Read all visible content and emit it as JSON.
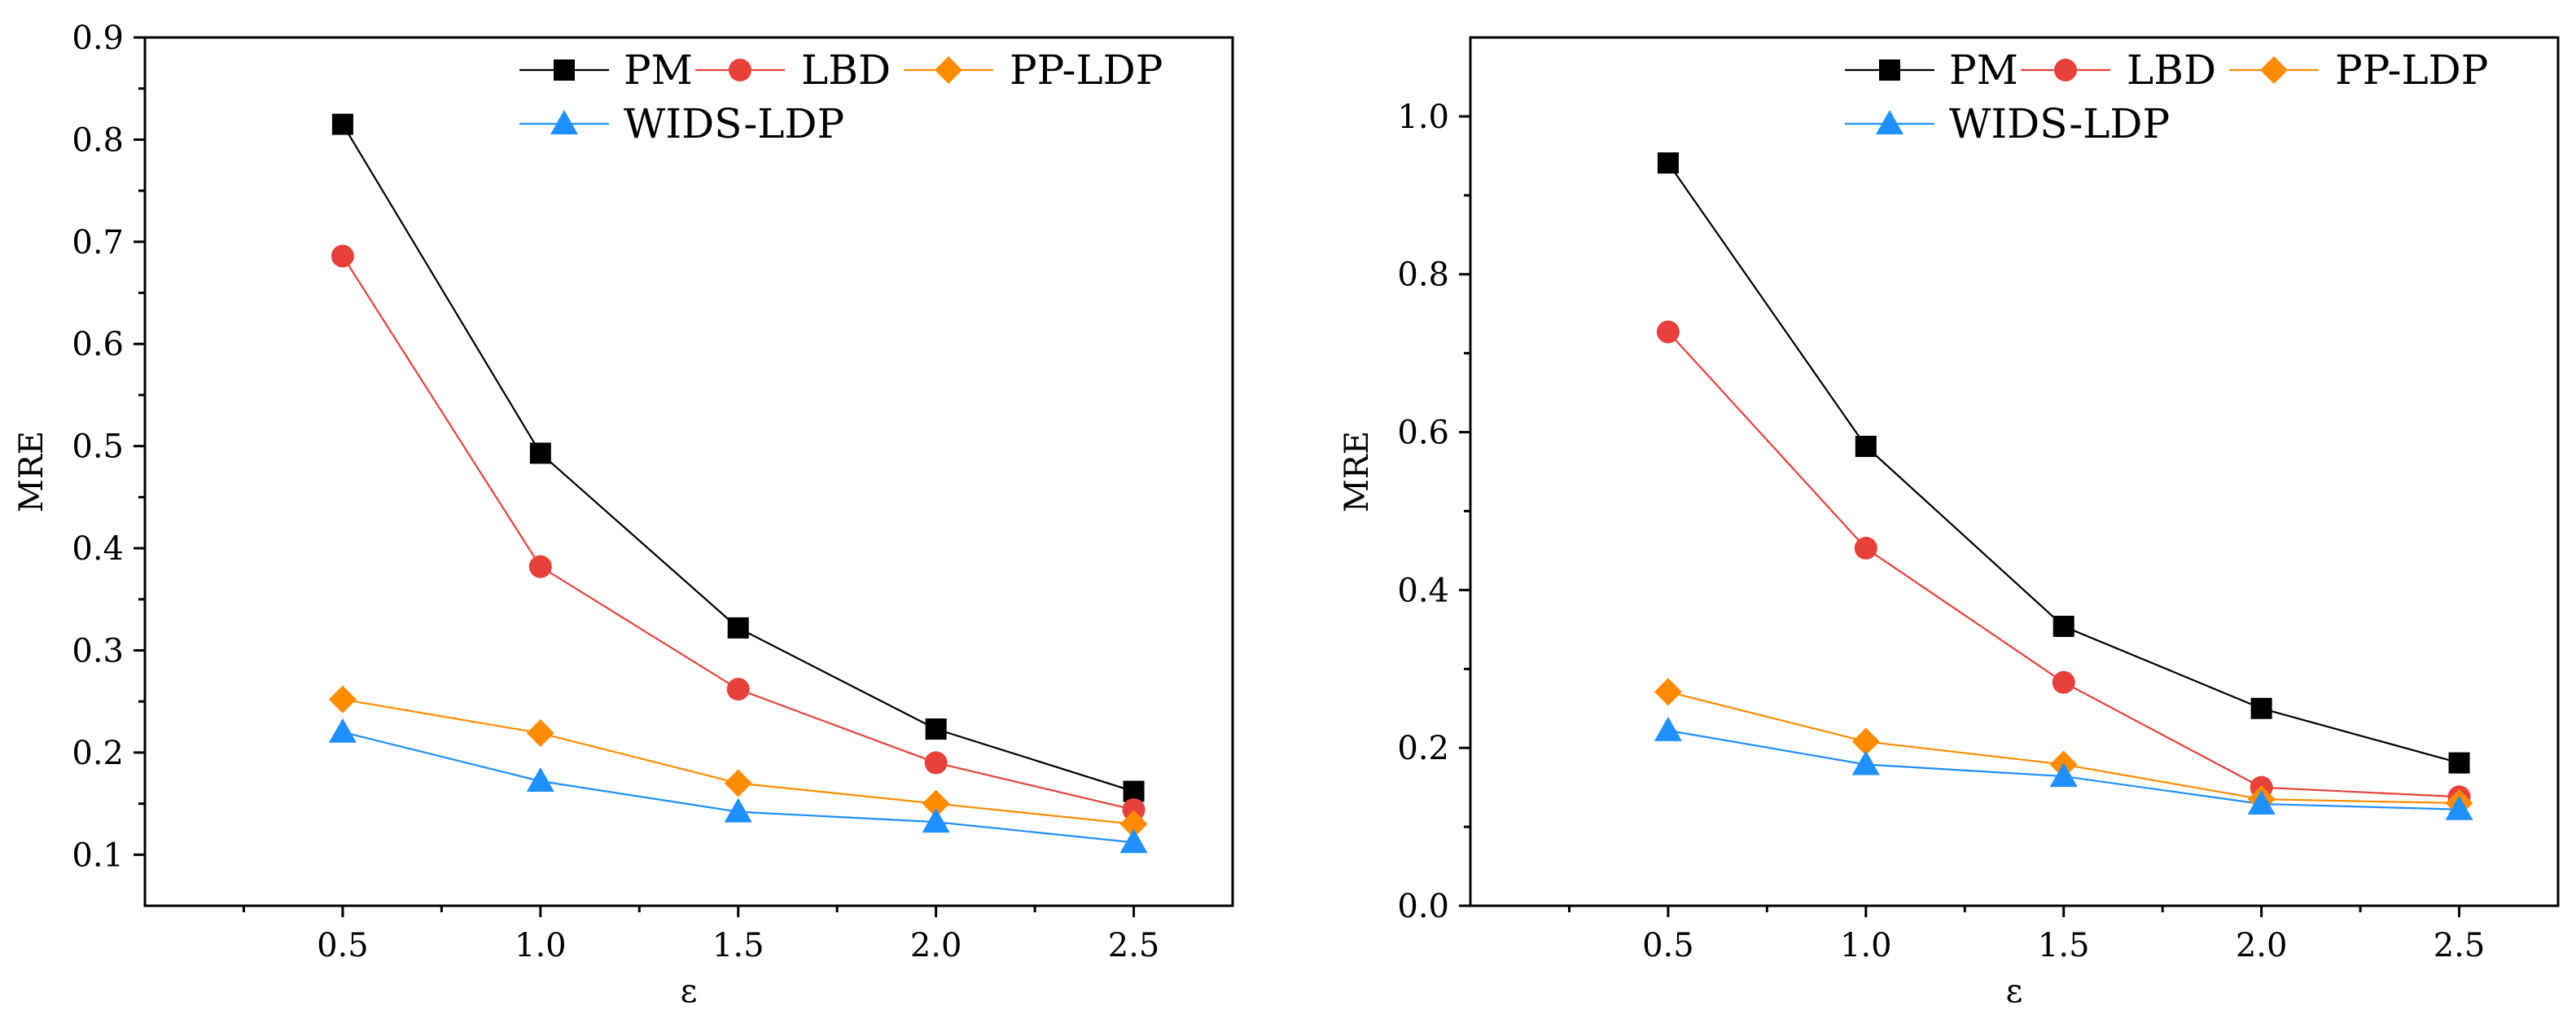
{
  "chart_data": [
    {
      "type": "line",
      "title": "",
      "xlabel": "ε",
      "ylabel": "MRE",
      "x": [
        0.5,
        1.0,
        1.5,
        2.0,
        2.5
      ],
      "x_tick_labels": [
        "0.5",
        "1.0",
        "1.5",
        "2.0",
        "2.5"
      ],
      "xlim": [
        0.0,
        2.75
      ],
      "ylim": [
        0.05,
        0.9
      ],
      "y_ticks": [
        0.1,
        0.2,
        0.3,
        0.4,
        0.5,
        0.6,
        0.7,
        0.8,
        0.9
      ],
      "y_tick_labels": [
        "0.1",
        "0.2",
        "0.3",
        "0.4",
        "0.5",
        "0.6",
        "0.7",
        "0.8",
        "0.9"
      ],
      "grid": false,
      "legend_position": "top-right",
      "series": [
        {
          "name": "PM",
          "values": [
            0.815,
            0.493,
            0.322,
            0.223,
            0.162
          ],
          "color": "#000000",
          "marker": "square"
        },
        {
          "name": "LBD",
          "values": [
            0.686,
            0.382,
            0.262,
            0.19,
            0.144
          ],
          "color": "#e8403a",
          "marker": "circle"
        },
        {
          "name": "PP-LDP",
          "values": [
            0.252,
            0.219,
            0.17,
            0.15,
            0.13
          ],
          "color": "#ff8c00",
          "marker": "diamond"
        },
        {
          "name": "WIDS-LDP",
          "values": [
            0.22,
            0.172,
            0.142,
            0.132,
            0.112
          ],
          "color": "#1e90ff",
          "marker": "triangle"
        }
      ]
    },
    {
      "type": "line",
      "title": "",
      "xlabel": "ε",
      "ylabel": "MRE",
      "x": [
        0.5,
        1.0,
        1.5,
        2.0,
        2.5
      ],
      "x_tick_labels": [
        "0.5",
        "1.0",
        "1.5",
        "2.0",
        "2.5"
      ],
      "xlim": [
        0.0,
        2.75
      ],
      "ylim": [
        0.0,
        1.1
      ],
      "y_ticks": [
        0.0,
        0.2,
        0.4,
        0.6,
        0.8,
        1.0
      ],
      "y_tick_labels": [
        "0.0",
        "0.2",
        "0.4",
        "0.6",
        "0.8",
        "1.0"
      ],
      "grid": false,
      "legend_position": "top-right",
      "series": [
        {
          "name": "PM",
          "values": [
            0.941,
            0.582,
            0.354,
            0.25,
            0.181
          ],
          "color": "#000000",
          "marker": "square"
        },
        {
          "name": "LBD",
          "values": [
            0.727,
            0.453,
            0.283,
            0.15,
            0.138
          ],
          "color": "#e8403a",
          "marker": "circle"
        },
        {
          "name": "PP-LDP",
          "values": [
            0.271,
            0.208,
            0.179,
            0.135,
            0.13
          ],
          "color": "#ff8c00",
          "marker": "diamond"
        },
        {
          "name": "WIDS-LDP",
          "values": [
            0.222,
            0.179,
            0.164,
            0.129,
            0.122
          ],
          "color": "#1e90ff",
          "marker": "triangle"
        }
      ]
    }
  ]
}
